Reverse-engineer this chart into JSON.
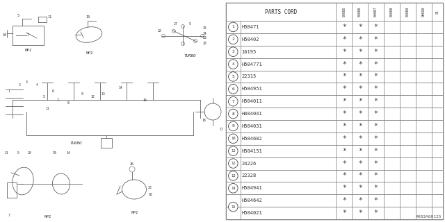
{
  "diagram_id": "A083A00125",
  "rows": [
    {
      "num": "1",
      "part": "H50471",
      "marks": [
        1,
        1,
        1,
        0,
        0,
        0,
        0
      ]
    },
    {
      "num": "2",
      "part": "H50402",
      "marks": [
        1,
        1,
        1,
        0,
        0,
        0,
        0
      ]
    },
    {
      "num": "3",
      "part": "16195",
      "marks": [
        1,
        1,
        1,
        0,
        0,
        0,
        0
      ]
    },
    {
      "num": "4",
      "part": "H504771",
      "marks": [
        1,
        1,
        1,
        0,
        0,
        0,
        0
      ]
    },
    {
      "num": "5",
      "part": "22315",
      "marks": [
        1,
        1,
        1,
        0,
        0,
        0,
        0
      ]
    },
    {
      "num": "6",
      "part": "H504951",
      "marks": [
        1,
        1,
        1,
        0,
        0,
        0,
        0
      ]
    },
    {
      "num": "7",
      "part": "H504011",
      "marks": [
        1,
        1,
        1,
        0,
        0,
        0,
        0
      ]
    },
    {
      "num": "8",
      "part": "H404041",
      "marks": [
        1,
        1,
        1,
        0,
        0,
        0,
        0
      ]
    },
    {
      "num": "9",
      "part": "H504031",
      "marks": [
        1,
        1,
        1,
        0,
        0,
        0,
        0
      ]
    },
    {
      "num": "10",
      "part": "H504682",
      "marks": [
        1,
        1,
        1,
        0,
        0,
        0,
        0
      ]
    },
    {
      "num": "11",
      "part": "H504151",
      "marks": [
        1,
        1,
        1,
        0,
        0,
        0,
        0
      ]
    },
    {
      "num": "12",
      "part": "24226",
      "marks": [
        1,
        1,
        1,
        0,
        0,
        0,
        0
      ]
    },
    {
      "num": "13",
      "part": "22328",
      "marks": [
        1,
        1,
        1,
        0,
        0,
        0,
        0
      ]
    },
    {
      "num": "14",
      "part": "H504941",
      "marks": [
        1,
        1,
        1,
        0,
        0,
        0,
        0
      ]
    },
    {
      "num": "15a",
      "part": "H504642",
      "marks": [
        1,
        1,
        1,
        0,
        0,
        0,
        0
      ]
    },
    {
      "num": "15b",
      "part": "H504021",
      "marks": [
        1,
        1,
        1,
        0,
        0,
        0,
        0
      ]
    }
  ],
  "year_cols": [
    "800\n85",
    "800\n86",
    "800\n87",
    "800\n88",
    "800\n89",
    "900\n90",
    "9\n1"
  ],
  "bg_color": "#ffffff",
  "lc": "#777777",
  "tc": "#333333"
}
